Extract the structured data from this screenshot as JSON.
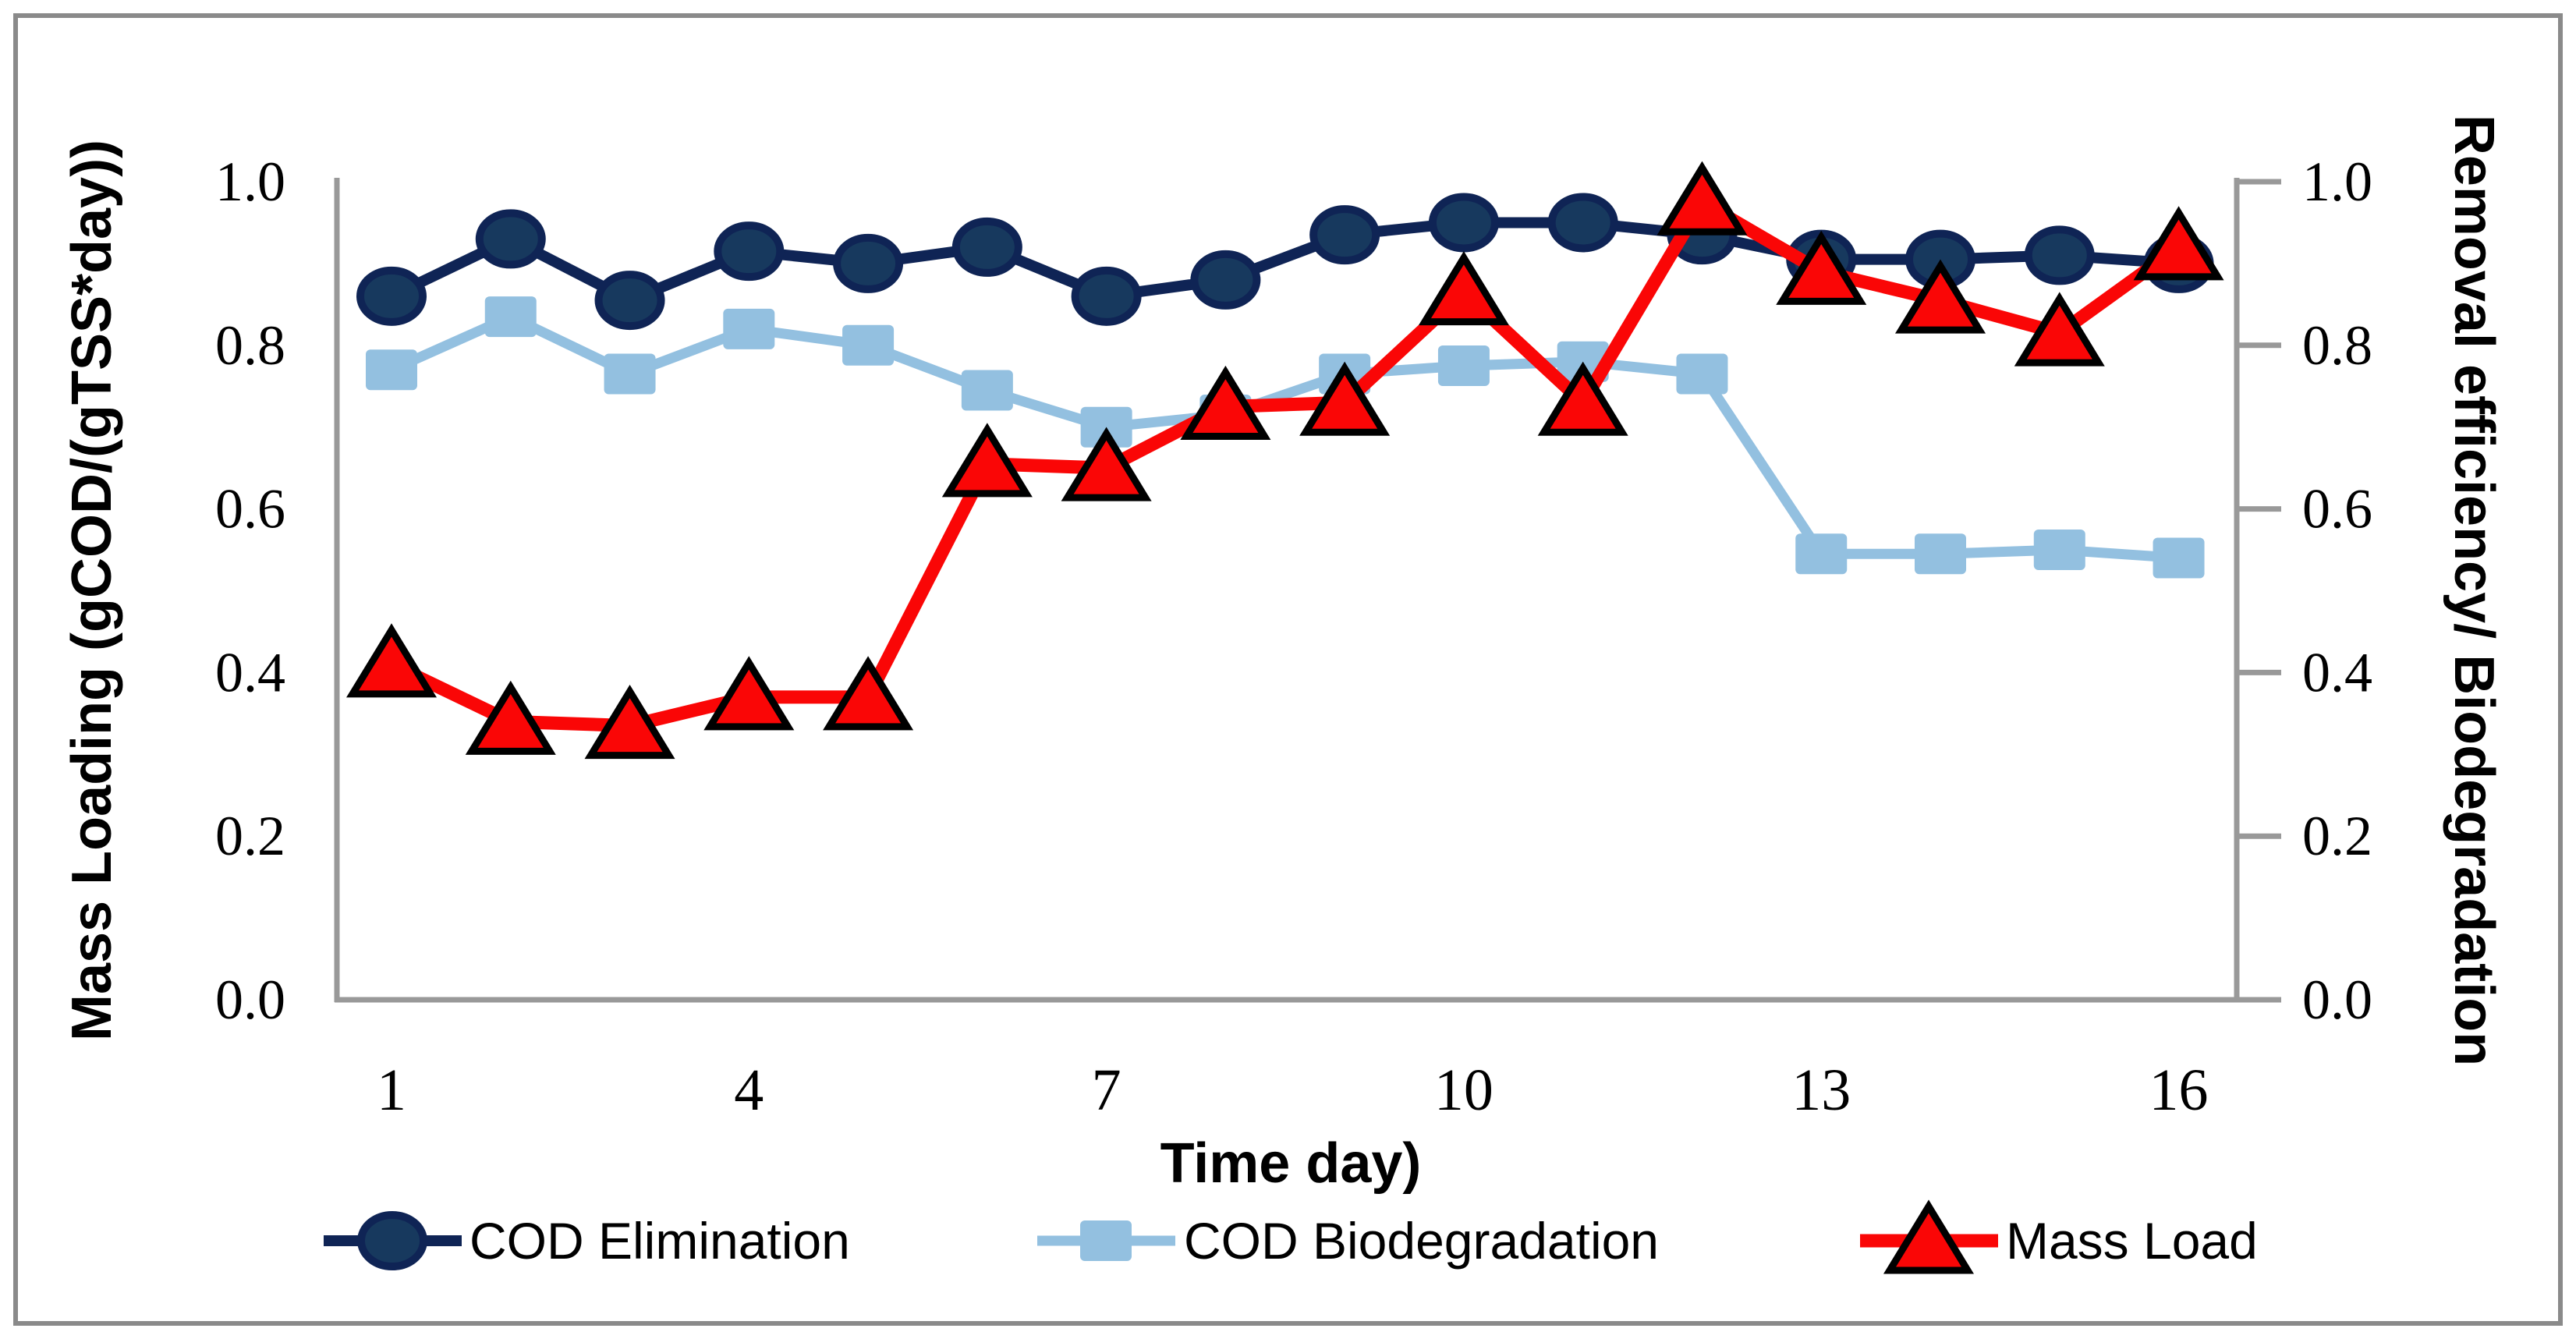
{
  "figure": {
    "background": "#ffffff",
    "border_color": "#8a8a8a"
  },
  "chart_data": {
    "type": "line",
    "x": [
      1,
      2,
      3,
      4,
      5,
      6,
      7,
      8,
      9,
      10,
      11,
      12,
      13,
      14,
      15,
      16
    ],
    "x_tick_labels": [
      1,
      4,
      7,
      10,
      13,
      16
    ],
    "xlabel": "Time day)",
    "ylabel_left": "Mass Loading (gCOD/(gTSS*day))",
    "ylabel_right": "Removal efficiency/ Biodegradation",
    "ylim": [
      0.0,
      1.0
    ],
    "y_ticks": [
      0.0,
      0.2,
      0.4,
      0.6,
      0.8,
      1.0
    ],
    "grid": false,
    "legend_position": "bottom",
    "axis_color": "#999999",
    "series": [
      {
        "name": "COD Elimination",
        "marker": "circle",
        "line_color": "#0f2455",
        "marker_fill": "#17395e",
        "marker_stroke": "#0f2455",
        "values": [
          0.86,
          0.93,
          0.855,
          0.915,
          0.9,
          0.92,
          0.86,
          0.88,
          0.935,
          0.95,
          0.95,
          0.935,
          0.905,
          0.905,
          0.91,
          0.9
        ]
      },
      {
        "name": "COD Biodegradation",
        "marker": "square",
        "line_color": "#93c0e0",
        "marker_fill": "#93c0e0",
        "marker_stroke": "#93c0e0",
        "values": [
          0.77,
          0.835,
          0.765,
          0.82,
          0.8,
          0.745,
          0.7,
          0.715,
          0.765,
          0.775,
          0.78,
          0.765,
          0.545,
          0.545,
          0.55,
          0.54
        ]
      },
      {
        "name": "Mass Load",
        "marker": "triangle",
        "line_color": "#fa0606",
        "marker_fill": "#fa0606",
        "marker_stroke": "#000000",
        "values": [
          0.41,
          0.34,
          0.335,
          0.37,
          0.37,
          0.655,
          0.65,
          0.725,
          0.73,
          0.865,
          0.73,
          0.975,
          0.89,
          0.855,
          0.815,
          0.92
        ]
      }
    ]
  }
}
